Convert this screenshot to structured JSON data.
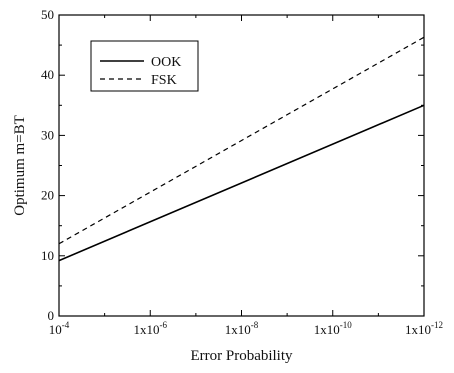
{
  "chart_data": {
    "type": "line",
    "xlabel": "Error Probability",
    "ylabel": "Optimum m=BT",
    "x_scale": "log",
    "x_reversed": true,
    "xlim": [
      0.0001,
      1e-12
    ],
    "ylim": [
      0,
      50
    ],
    "x_ticks": [
      {
        "value": 0.0001,
        "base": "10",
        "exp": "-4"
      },
      {
        "value": 1e-06,
        "base": "1x10",
        "exp": "-6"
      },
      {
        "value": 1e-08,
        "base": "1x10",
        "exp": "-8"
      },
      {
        "value": 1e-10,
        "base": "1x10",
        "exp": "-10"
      },
      {
        "value": 1e-12,
        "base": "1x10",
        "exp": "-12"
      }
    ],
    "y_ticks": [
      "0",
      "10",
      "20",
      "30",
      "40",
      "50"
    ],
    "grid": false,
    "legend_position": "top-left",
    "series": [
      {
        "name": "OOK",
        "style": "solid",
        "color": "#000000",
        "x": [
          0.0001,
          1e-12
        ],
        "y": [
          9.2,
          35.0
        ]
      },
      {
        "name": "FSK",
        "style": "dashed",
        "color": "#000000",
        "x": [
          0.0001,
          1e-12
        ],
        "y": [
          12.0,
          46.3
        ]
      }
    ]
  }
}
